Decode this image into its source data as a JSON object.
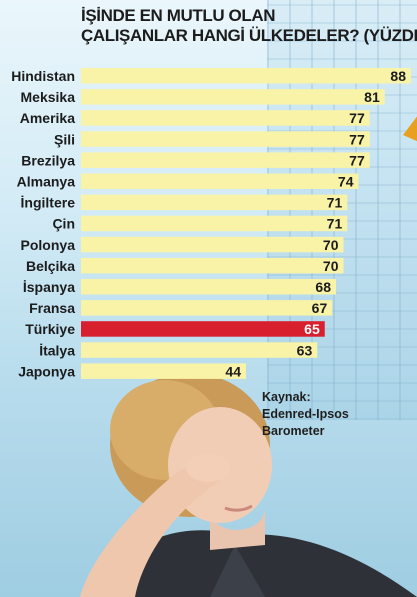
{
  "chart_data": {
    "type": "bar",
    "orientation": "horizontal",
    "title": "İŞİNDE EN MUTLU OLAN ÇALIŞANLAR HANGİ ÜLKEDELER? (YÜZDE)",
    "title_lines": [
      "İŞİNDE EN MUTLU OLAN",
      "ÇALIŞANLAR HANGİ ÜLKEDELER? (YÜZDE)"
    ],
    "categories": [
      "Hindistan",
      "Meksika",
      "Amerika",
      "Şili",
      "Brezilya",
      "Almanya",
      "İngiltere",
      "Çin",
      "Polonya",
      "Belçika",
      "İspanya",
      "Fransa",
      "Türkiye",
      "İtalya",
      "Japonya"
    ],
    "values": [
      88,
      81,
      77,
      77,
      77,
      74,
      71,
      71,
      70,
      70,
      68,
      67,
      65,
      63,
      44
    ],
    "highlight_category": "Türkiye",
    "xlim": [
      0,
      88
    ],
    "grid": false,
    "legend": "none",
    "colors": {
      "bar": "#f9f3a8",
      "highlight": "#d81f2e",
      "text": "#1c1c1c",
      "highlight_text": "#ffffff"
    }
  },
  "source_lines": [
    "Kaynak:",
    "Edenred-Ipsos",
    "Barometer"
  ]
}
